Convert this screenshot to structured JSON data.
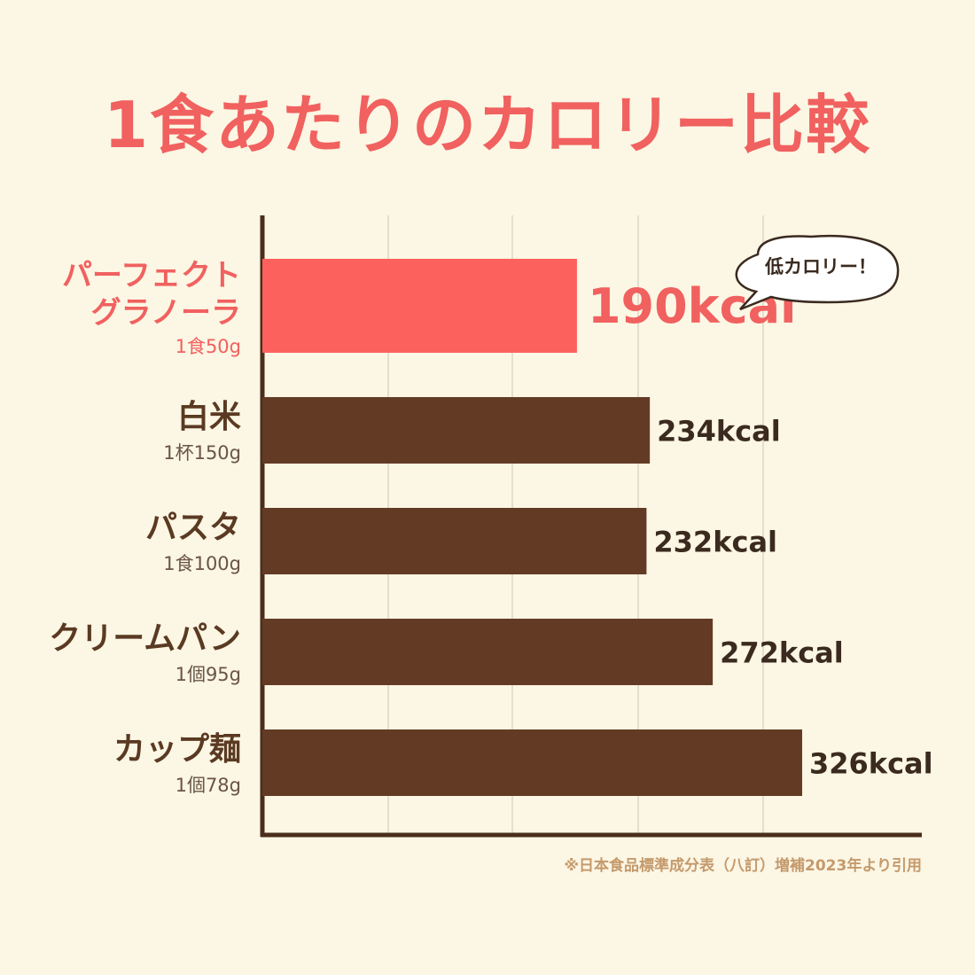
{
  "title": "1食あたりのカロリー比較",
  "bubble_text": "低カロリー！",
  "footnote": "※日本食品標準成分表（八訂）増補2023年より引用",
  "colors": {
    "highlight": "#fd615e",
    "bar": "#633b25",
    "highlight_text": "#f0615f",
    "text": "#5a3a22",
    "grid": "#dcd6c6",
    "background": "#fcf6e4"
  },
  "chart_data": {
    "type": "bar",
    "orientation": "horizontal",
    "title": "1食あたりのカロリー比較",
    "xlim": [
      0,
      380
    ],
    "grid": true,
    "categories": [
      {
        "name": [
          "パーフェクト",
          "グラノーラ"
        ],
        "portion": "1食50g",
        "value": 190,
        "label": "190kcal",
        "highlight": true
      },
      {
        "name": [
          "白米"
        ],
        "portion": "1杯150g",
        "value": 234,
        "label": "234kcal",
        "highlight": false
      },
      {
        "name": [
          "パスタ"
        ],
        "portion": "1食100g",
        "value": 232,
        "label": "232kcal",
        "highlight": false
      },
      {
        "name": [
          "クリームパン"
        ],
        "portion": "1個95g",
        "value": 272,
        "label": "272kcal",
        "highlight": false
      },
      {
        "name": [
          "カップ麺"
        ],
        "portion": "1個78g",
        "value": 326,
        "label": "326kcal",
        "highlight": false
      }
    ]
  }
}
